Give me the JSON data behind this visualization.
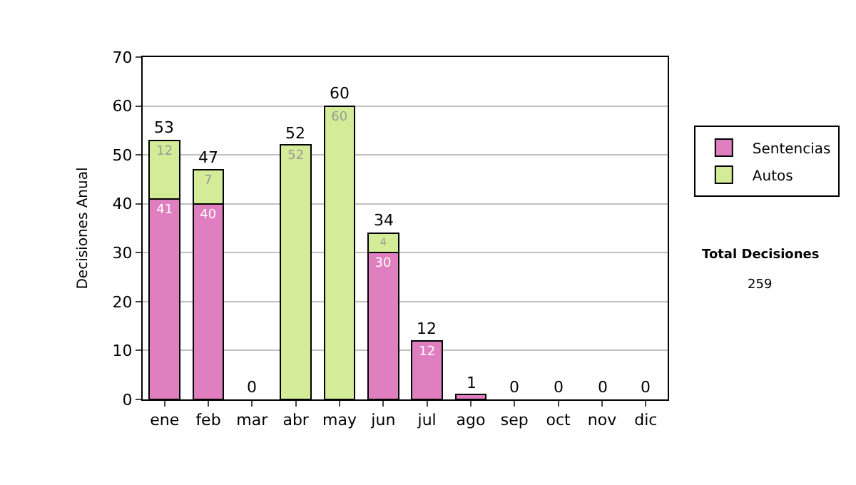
{
  "chart_data": {
    "type": "bar",
    "stacked": true,
    "ylabel": "Decisiones Anual",
    "categories": [
      "ene",
      "feb",
      "mar",
      "abr",
      "may",
      "jun",
      "jul",
      "ago",
      "sep",
      "oct",
      "nov",
      "dic"
    ],
    "series": [
      {
        "name": "Sentencias",
        "color": "#e07fc0",
        "values": [
          41,
          40,
          0,
          0,
          0,
          30,
          12,
          1,
          0,
          0,
          0,
          0
        ],
        "value_labels": [
          "41",
          "40",
          null,
          null,
          null,
          "30",
          "12",
          null,
          null,
          null,
          null,
          null
        ]
      },
      {
        "name": "Autos",
        "color": "#d4ec98",
        "values": [
          12,
          7,
          0,
          52,
          60,
          4,
          0,
          0,
          0,
          0,
          0,
          0
        ],
        "value_labels": [
          "12",
          "7",
          null,
          "52",
          "60",
          "4",
          null,
          null,
          null,
          null,
          null,
          null
        ]
      }
    ],
    "totals": [
      "53",
      "47",
      "0",
      "52",
      "60",
      "34",
      "12",
      "1",
      "0",
      "0",
      "0",
      "0"
    ],
    "ylim": [
      0,
      70
    ],
    "yticks": [
      0,
      10,
      20,
      30,
      40,
      50,
      60,
      70
    ],
    "grid": "y",
    "legend": "right",
    "annotations": [
      "Total Decisiones",
      "259"
    ]
  }
}
